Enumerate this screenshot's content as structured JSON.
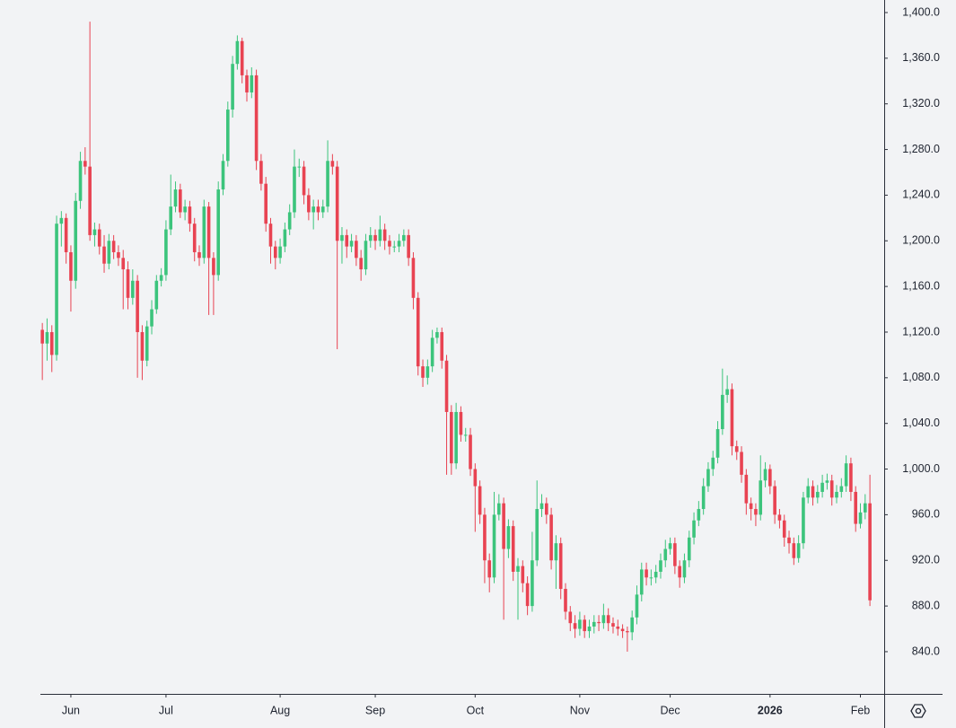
{
  "chart_data": {
    "type": "candlestick",
    "up_color": "#3cc47c",
    "down_color": "#e84352",
    "xlim": [
      -8.9,
      177
    ],
    "xticks": [
      {
        "value": 6,
        "label": "Jun"
      },
      {
        "value": 26,
        "label": "Jul"
      },
      {
        "value": 50,
        "label": "Aug"
      },
      {
        "value": 70,
        "label": "Sep"
      },
      {
        "value": 91,
        "label": "Oct"
      },
      {
        "value": 113,
        "label": "Nov"
      },
      {
        "value": 132,
        "label": "Dec"
      },
      {
        "value": 153,
        "label": "2026"
      },
      {
        "value": 172,
        "label": "Feb"
      }
    ],
    "ylim": [
      803,
      1411
    ],
    "yticks": [
      {
        "value": 840,
        "label": "840.0"
      },
      {
        "value": 880,
        "label": "880.0"
      },
      {
        "value": 920,
        "label": "920.0"
      },
      {
        "value": 960,
        "label": "960.0"
      },
      {
        "value": 1000,
        "label": "1,000.0"
      },
      {
        "value": 1040,
        "label": "1,040.0"
      },
      {
        "value": 1080,
        "label": "1,080.0"
      },
      {
        "value": 1120,
        "label": "1,120.0"
      },
      {
        "value": 1160,
        "label": "1,160.0"
      },
      {
        "value": 1200,
        "label": "1,200.0"
      },
      {
        "value": 1240,
        "label": "1,240.0"
      },
      {
        "value": 1280,
        "label": "1,280.0"
      },
      {
        "value": 1320,
        "label": "1,320.0"
      },
      {
        "value": 1360,
        "label": "1,360.0"
      },
      {
        "value": 1400,
        "label": "1,400.0"
      }
    ],
    "open": [
      1122,
      1110,
      1120,
      1100,
      1215,
      1220,
      1190,
      1165,
      1235,
      1270,
      1265,
      1205,
      1210,
      1195,
      1180,
      1200,
      1190,
      1185,
      1175,
      1150,
      1165,
      1120,
      1095,
      1125,
      1140,
      1165,
      1170,
      1210,
      1230,
      1245,
      1225,
      1230,
      1215,
      1190,
      1185,
      1230,
      1185,
      1170,
      1245,
      1270,
      1315,
      1355,
      1375,
      1345,
      1330,
      1345,
      1270,
      1250,
      1215,
      1195,
      1185,
      1195,
      1210,
      1225,
      1265,
      1265,
      1240,
      1225,
      1230,
      1225,
      1230,
      1270,
      1265,
      1200,
      1205,
      1195,
      1200,
      1185,
      1175,
      1200,
      1205,
      1200,
      1210,
      1200,
      1195,
      1195,
      1200,
      1205,
      1185,
      1150,
      1090,
      1080,
      1090,
      1115,
      1120,
      1095,
      1050,
      1005,
      1050,
      1030,
      1030,
      1000,
      985,
      960,
      920,
      905,
      960,
      970,
      930,
      950,
      910,
      915,
      900,
      880,
      920,
      965,
      970,
      960,
      920,
      935,
      895,
      875,
      865,
      860,
      868,
      858,
      862,
      866,
      865,
      872,
      865,
      862,
      860,
      858,
      857,
      870,
      890,
      912,
      905,
      905,
      910,
      920,
      930,
      935,
      915,
      905,
      920,
      940,
      955,
      965,
      985,
      1000,
      1010,
      1035,
      1065,
      1070,
      1020,
      1015,
      995,
      970,
      965,
      960,
      990,
      1000,
      985,
      960,
      955,
      940,
      935,
      922,
      935,
      975,
      985,
      975,
      980,
      988,
      990,
      975,
      980,
      985,
      1005,
      980,
      952,
      962,
      970
    ],
    "high": [
      1128,
      1132,
      1126,
      1222,
      1226,
      1224,
      1196,
      1242,
      1278,
      1282,
      1392,
      1216,
      1215,
      1205,
      1206,
      1205,
      1196,
      1192,
      1182,
      1175,
      1170,
      1126,
      1130,
      1148,
      1170,
      1176,
      1218,
      1258,
      1252,
      1250,
      1236,
      1235,
      1220,
      1196,
      1236,
      1234,
      1190,
      1252,
      1276,
      1322,
      1362,
      1380,
      1378,
      1350,
      1352,
      1350,
      1276,
      1256,
      1220,
      1200,
      1202,
      1216,
      1232,
      1280,
      1272,
      1270,
      1246,
      1236,
      1236,
      1236,
      1288,
      1276,
      1270,
      1212,
      1210,
      1206,
      1205,
      1192,
      1206,
      1212,
      1210,
      1222,
      1215,
      1205,
      1200,
      1206,
      1210,
      1210,
      1190,
      1155,
      1096,
      1096,
      1122,
      1124,
      1124,
      1100,
      1056,
      1058,
      1055,
      1036,
      1036,
      1005,
      990,
      966,
      926,
      980,
      978,
      975,
      956,
      955,
      922,
      920,
      906,
      945,
      990,
      978,
      975,
      966,
      942,
      940,
      900,
      880,
      872,
      875,
      872,
      868,
      872,
      872,
      882,
      878,
      870,
      868,
      864,
      862,
      876,
      898,
      918,
      918,
      912,
      916,
      926,
      938,
      940,
      940,
      920,
      926,
      946,
      962,
      972,
      992,
      1006,
      1016,
      1042,
      1088,
      1082,
      1075,
      1025,
      1020,
      1000,
      975,
      970,
      1012,
      1006,
      1004,
      990,
      965,
      960,
      946,
      940,
      942,
      980,
      992,
      990,
      986,
      995,
      996,
      995,
      986,
      992,
      1012,
      1010,
      985,
      970,
      978,
      995
    ],
    "low": [
      1078,
      1095,
      1085,
      1095,
      1195,
      1180,
      1138,
      1158,
      1228,
      1258,
      1200,
      1195,
      1188,
      1172,
      1175,
      1184,
      1178,
      1140,
      1140,
      1144,
      1080,
      1078,
      1090,
      1118,
      1136,
      1160,
      1165,
      1205,
      1225,
      1220,
      1218,
      1208,
      1182,
      1178,
      1180,
      1135,
      1135,
      1165,
      1240,
      1265,
      1308,
      1350,
      1338,
      1322,
      1325,
      1262,
      1244,
      1208,
      1180,
      1175,
      1180,
      1190,
      1205,
      1220,
      1256,
      1232,
      1218,
      1210,
      1218,
      1220,
      1225,
      1258,
      1105,
      1180,
      1185,
      1190,
      1178,
      1165,
      1170,
      1194,
      1192,
      1195,
      1192,
      1188,
      1190,
      1190,
      1195,
      1178,
      1140,
      1082,
      1072,
      1074,
      1085,
      1110,
      1088,
      995,
      995,
      1000,
      1024,
      1024,
      994,
      945,
      952,
      900,
      892,
      900,
      955,
      868,
      922,
      902,
      868,
      892,
      872,
      875,
      915,
      958,
      952,
      912,
      895,
      886,
      868,
      858,
      852,
      854,
      852,
      852,
      856,
      858,
      860,
      858,
      856,
      854,
      852,
      840,
      850,
      864,
      884,
      898,
      898,
      900,
      904,
      914,
      925,
      908,
      896,
      900,
      914,
      934,
      950,
      960,
      980,
      994,
      1005,
      1030,
      1058,
      1012,
      1008,
      988,
      960,
      955,
      950,
      955,
      984,
      978,
      952,
      948,
      932,
      926,
      916,
      918,
      930,
      970,
      968,
      970,
      975,
      982,
      968,
      970,
      975,
      980,
      972,
      945,
      948,
      956,
      880
    ],
    "close": [
      1110,
      1120,
      1100,
      1215,
      1220,
      1190,
      1165,
      1235,
      1270,
      1265,
      1205,
      1210,
      1195,
      1180,
      1200,
      1190,
      1185,
      1175,
      1150,
      1165,
      1120,
      1095,
      1125,
      1140,
      1165,
      1170,
      1210,
      1230,
      1245,
      1225,
      1230,
      1215,
      1190,
      1185,
      1230,
      1185,
      1170,
      1245,
      1270,
      1315,
      1355,
      1375,
      1345,
      1330,
      1345,
      1270,
      1250,
      1215,
      1195,
      1185,
      1195,
      1210,
      1225,
      1265,
      1265,
      1240,
      1225,
      1230,
      1225,
      1230,
      1270,
      1265,
      1200,
      1205,
      1195,
      1200,
      1185,
      1175,
      1200,
      1205,
      1200,
      1210,
      1200,
      1195,
      1195,
      1200,
      1205,
      1185,
      1150,
      1090,
      1080,
      1090,
      1115,
      1120,
      1095,
      1050,
      1005,
      1050,
      1030,
      1030,
      1000,
      985,
      960,
      920,
      905,
      960,
      970,
      930,
      950,
      910,
      915,
      900,
      880,
      920,
      965,
      970,
      960,
      920,
      935,
      895,
      875,
      865,
      860,
      868,
      858,
      862,
      866,
      865,
      872,
      865,
      862,
      860,
      858,
      857,
      870,
      890,
      912,
      905,
      905,
      910,
      920,
      930,
      935,
      915,
      905,
      920,
      940,
      955,
      965,
      985,
      1000,
      1010,
      1035,
      1065,
      1070,
      1020,
      1015,
      995,
      970,
      965,
      960,
      990,
      1000,
      985,
      960,
      955,
      940,
      935,
      922,
      935,
      975,
      985,
      975,
      980,
      988,
      990,
      975,
      980,
      985,
      1005,
      980,
      952,
      962,
      970,
      885
    ]
  }
}
